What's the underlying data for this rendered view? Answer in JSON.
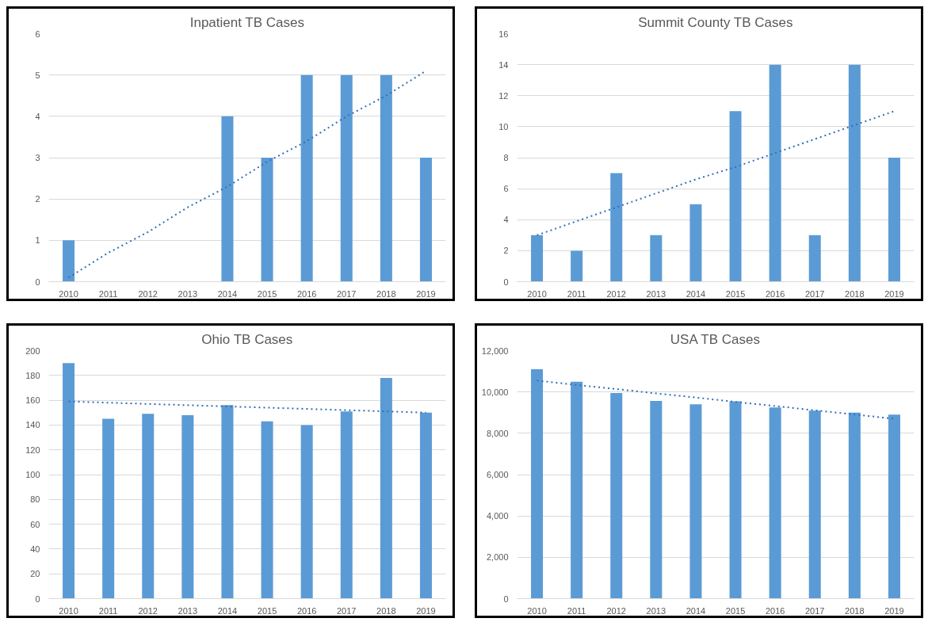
{
  "chart_data": [
    {
      "type": "bar",
      "title": "Inpatient TB Cases",
      "categories": [
        "2010",
        "2011",
        "2012",
        "2013",
        "2014",
        "2015",
        "2016",
        "2017",
        "2018",
        "2019"
      ],
      "grid": "y",
      "ylim": [
        0,
        6
      ],
      "yticks": [
        0,
        1,
        2,
        3,
        4,
        5,
        6
      ],
      "series": [
        {
          "color": "#5b9bd5",
          "values": [
            1,
            0,
            0,
            0,
            4,
            3,
            5,
            5,
            5,
            3
          ]
        },
        {
          "type": "line",
          "line_style": "dotted",
          "color": "#2f6fb5",
          "values": [
            0.1,
            0.7,
            1.2,
            1.8,
            2.3,
            2.9,
            3.4,
            4.0,
            4.5,
            5.1
          ]
        }
      ]
    },
    {
      "type": "bar",
      "title": "Summit County TB Cases",
      "categories": [
        "2010",
        "2011",
        "2012",
        "2013",
        "2014",
        "2015",
        "2016",
        "2017",
        "2018",
        "2019"
      ],
      "grid": "y",
      "ylim": [
        0,
        16
      ],
      "yticks": [
        0,
        2,
        4,
        6,
        8,
        10,
        12,
        14,
        16
      ],
      "series": [
        {
          "color": "#5b9bd5",
          "values": [
            3,
            2,
            7,
            3,
            5,
            11,
            14,
            3,
            14,
            8
          ]
        },
        {
          "type": "line",
          "line_style": "dotted",
          "color": "#2f6fb5",
          "values": [
            3,
            3.9,
            4.8,
            5.7,
            6.6,
            7.4,
            8.3,
            9.2,
            10.1,
            11
          ]
        }
      ]
    },
    {
      "type": "bar",
      "title": "Ohio TB Cases",
      "categories": [
        "2010",
        "2011",
        "2012",
        "2013",
        "2014",
        "2015",
        "2016",
        "2017",
        "2018",
        "2019"
      ],
      "grid": "y",
      "ylim": [
        0,
        200
      ],
      "yticks": [
        0,
        20,
        40,
        60,
        80,
        100,
        120,
        140,
        160,
        180,
        200
      ],
      "series": [
        {
          "color": "#5b9bd5",
          "values": [
            190,
            145,
            149,
            148,
            156,
            143,
            140,
            151,
            178,
            150
          ]
        },
        {
          "type": "line",
          "line_style": "dotted",
          "color": "#2f6fb5",
          "values": [
            159,
            158,
            157,
            156,
            155,
            154,
            153,
            152,
            151,
            150
          ]
        }
      ]
    },
    {
      "type": "bar",
      "title": "USA TB Cases",
      "categories": [
        "2010",
        "2011",
        "2012",
        "2013",
        "2014",
        "2015",
        "2016",
        "2017",
        "2018",
        "2019"
      ],
      "grid": "y",
      "ylim": [
        0,
        12000
      ],
      "yticks": [
        0,
        {
          "value": 2000,
          "label": "2,000"
        },
        {
          "value": 4000,
          "label": "4,000"
        },
        {
          "value": 6000,
          "label": "6,000"
        },
        {
          "value": 8000,
          "label": "8,000"
        },
        {
          "value": 10000,
          "label": "10,000"
        },
        {
          "value": 12000,
          "label": "12,000"
        }
      ],
      "series": [
        {
          "color": "#5b9bd5",
          "values": [
            11100,
            10500,
            9950,
            9570,
            9400,
            9550,
            9250,
            9100,
            9000,
            8900
          ]
        },
        {
          "type": "line",
          "line_style": "dotted",
          "color": "#2f6fb5",
          "values": [
            10550,
            10340,
            10140,
            9930,
            9730,
            9520,
            9320,
            9110,
            8910,
            8700
          ]
        }
      ]
    }
  ]
}
